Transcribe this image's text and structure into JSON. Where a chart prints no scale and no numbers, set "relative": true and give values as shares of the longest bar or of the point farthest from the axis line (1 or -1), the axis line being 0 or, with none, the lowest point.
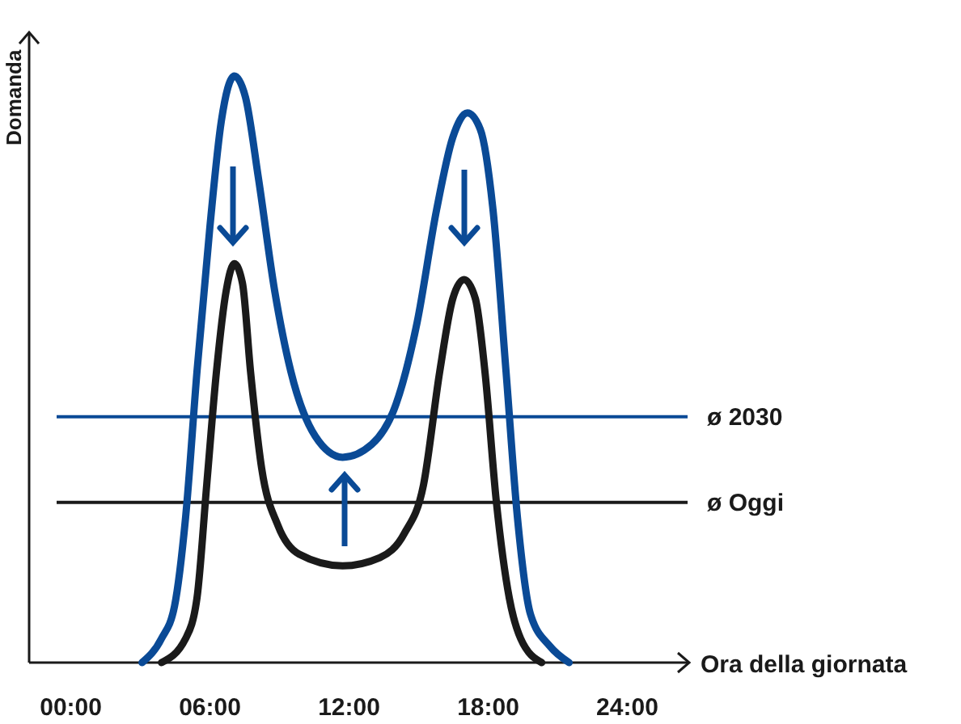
{
  "chart_data": {
    "type": "line",
    "relative": true,
    "xlabel": "Ora della giornata",
    "ylabel": "Domanda",
    "xlim": [
      -1.8,
      26.6
    ],
    "xticks": [
      {
        "value": 0,
        "label": "00:00"
      },
      {
        "value": 6,
        "label": "06:00"
      },
      {
        "value": 12,
        "label": "12:00"
      },
      {
        "value": 18,
        "label": "18:00"
      },
      {
        "value": 24,
        "label": "24:00"
      }
    ],
    "series": [
      {
        "color": "#0a4a96",
        "x": [
          3.07,
          3.91,
          4.47,
          4.95,
          5.44,
          6.0,
          6.49,
          7.05,
          7.53,
          8.09,
          8.79,
          9.49,
          10.54,
          11.72,
          12.98,
          14.03,
          14.93,
          15.77,
          16.47,
          17.1,
          17.66,
          18.21,
          18.77,
          19.26,
          19.82,
          20.66,
          21.49
        ],
        "values": [
          0,
          0.041,
          0.096,
          0.248,
          0.496,
          0.744,
          0.923,
          1,
          0.964,
          0.826,
          0.634,
          0.496,
          0.386,
          0.35,
          0.372,
          0.441,
          0.579,
          0.771,
          0.895,
          0.937,
          0.909,
          0.771,
          0.496,
          0.248,
          0.083,
          0.028,
          0
        ]
      },
      {
        "color": "#1a1a1a",
        "x": [
          3.91,
          4.95,
          5.44,
          5.86,
          6.28,
          6.7,
          7.05,
          7.4,
          7.75,
          8.23,
          8.93,
          9.84,
          11.72,
          13.33,
          14.38,
          15.21,
          15.91,
          16.47,
          16.96,
          17.45,
          17.86,
          18.35,
          18.91,
          19.4,
          20.31
        ],
        "values": [
          0,
          0.041,
          0.11,
          0.303,
          0.496,
          0.634,
          0.68,
          0.647,
          0.496,
          0.331,
          0.234,
          0.185,
          0.165,
          0.179,
          0.22,
          0.303,
          0.496,
          0.62,
          0.653,
          0.62,
          0.496,
          0.275,
          0.11,
          0.041,
          0
        ]
      }
    ],
    "ref_lines": [
      {
        "axis": "y",
        "value": 0.419,
        "label": "ø 2030",
        "color": "#0a4a96"
      },
      {
        "axis": "y",
        "value": 0.273,
        "label": "ø Oggi",
        "color": "#1a1a1a"
      }
    ],
    "line_style": "solid",
    "marker": "none",
    "grid": false
  }
}
